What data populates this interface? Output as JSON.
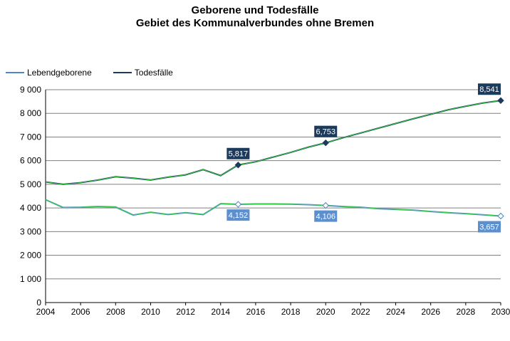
{
  "title": {
    "line1": "Geborene und Todesfälle",
    "line2": "Gebiet des Kommunalverbundes ohne Bremen"
  },
  "colors": {
    "births": "#4a86c8",
    "deaths": "#1b3a5c",
    "births_label_bg": "#5b8fd0",
    "deaths_label_bg": "#1b3a5c",
    "overlay": "#33dd33",
    "grid": "#808080"
  },
  "chart_data": {
    "type": "line",
    "title": "Geborene und Todesfälle — Gebiet des Kommunalverbundes ohne Bremen",
    "xlabel": "",
    "ylabel": "",
    "xlim": [
      2004,
      2030
    ],
    "ylim": [
      0,
      9000
    ],
    "grid": true,
    "legend_position": "top-left",
    "x_ticks": [
      "2004",
      "2006",
      "2008",
      "2010",
      "2012",
      "2014",
      "2016",
      "2018",
      "2020",
      "2022",
      "2024",
      "2026",
      "2028",
      "2030"
    ],
    "y_ticks": [
      "0",
      "1 000",
      "2 000",
      "3 000",
      "4 000",
      "5 000",
      "6 000",
      "7 000",
      "8 000",
      "9 000"
    ],
    "series": [
      {
        "name": "Lebendgeborene",
        "x": [
          2004,
          2005,
          2006,
          2007,
          2008,
          2009,
          2010,
          2011,
          2012,
          2013,
          2014,
          2015,
          2016,
          2017,
          2018,
          2019,
          2020,
          2021,
          2022,
          2023,
          2024,
          2025,
          2026,
          2027,
          2028,
          2029,
          2030
        ],
        "values": [
          4350,
          4020,
          4030,
          4060,
          4040,
          3700,
          3820,
          3720,
          3800,
          3720,
          4180,
          4152,
          4170,
          4170,
          4160,
          4140,
          4106,
          4060,
          4030,
          3970,
          3940,
          3910,
          3850,
          3800,
          3760,
          3710,
          3657
        ],
        "data_labels": [
          {
            "x": 2015,
            "y": 4152,
            "text": "4,152"
          },
          {
            "x": 2020,
            "y": 4106,
            "text": "4,106"
          },
          {
            "x": 2030,
            "y": 3657,
            "text": "3,657"
          }
        ]
      },
      {
        "name": "Todesfälle",
        "x": [
          2004,
          2005,
          2006,
          2007,
          2008,
          2009,
          2010,
          2011,
          2012,
          2013,
          2014,
          2015,
          2016,
          2017,
          2018,
          2019,
          2020,
          2021,
          2022,
          2023,
          2024,
          2025,
          2026,
          2027,
          2028,
          2029,
          2030
        ],
        "values": [
          5100,
          5000,
          5070,
          5180,
          5320,
          5260,
          5180,
          5300,
          5400,
          5620,
          5370,
          5817,
          5950,
          6150,
          6350,
          6570,
          6753,
          6970,
          7170,
          7370,
          7570,
          7770,
          7960,
          8150,
          8300,
          8440,
          8541
        ],
        "data_labels": [
          {
            "x": 2015,
            "y": 5817,
            "text": "5,817"
          },
          {
            "x": 2020,
            "y": 6753,
            "text": "6,753"
          },
          {
            "x": 2030,
            "y": 8541,
            "text": "8,541"
          }
        ]
      }
    ]
  }
}
